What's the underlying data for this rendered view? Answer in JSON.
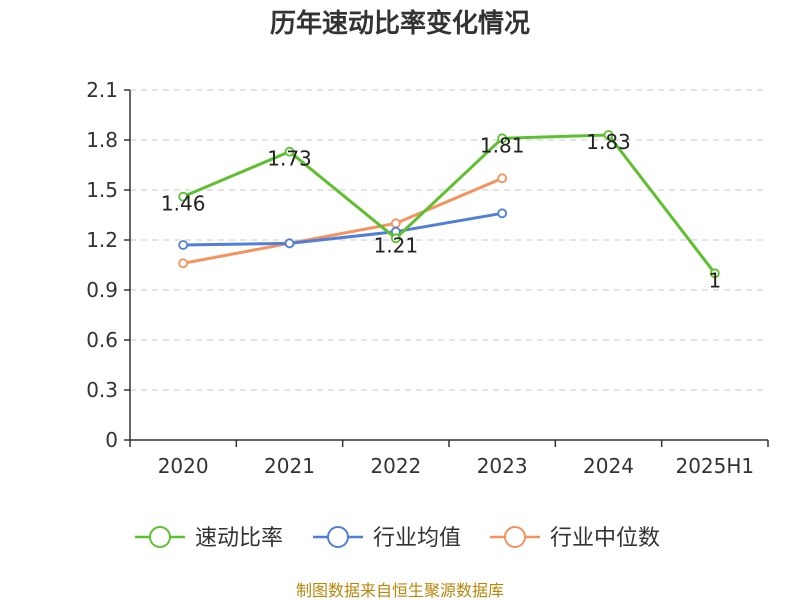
{
  "chart_data": {
    "type": "line",
    "title": "历年速动比率变化情况",
    "categories": [
      "2020",
      "2021",
      "2022",
      "2023",
      "2024",
      "2025H1"
    ],
    "ylim": [
      0,
      2.1
    ],
    "yticks": [
      "0",
      "0.3",
      "0.6",
      "0.9",
      "1.2",
      "1.5",
      "1.8",
      "2.1"
    ],
    "grid": true,
    "legend_position": "bottom",
    "series": [
      {
        "name": "速动比率",
        "color": "#5ec02e",
        "values": [
          1.46,
          1.73,
          1.21,
          1.81,
          1.83,
          1
        ],
        "labels": [
          "1.46",
          "1.73",
          "1.21",
          "1.81",
          "1.83",
          "1"
        ]
      },
      {
        "name": "行业均值",
        "color": "#4f7fd8",
        "values": [
          1.17,
          1.18,
          1.25,
          1.36,
          null,
          null
        ]
      },
      {
        "name": "行业中位数",
        "color": "#f5935e",
        "values": [
          1.06,
          1.18,
          1.3,
          1.57,
          null,
          null
        ]
      }
    ]
  },
  "source": "制图数据来自恒生聚源数据库"
}
